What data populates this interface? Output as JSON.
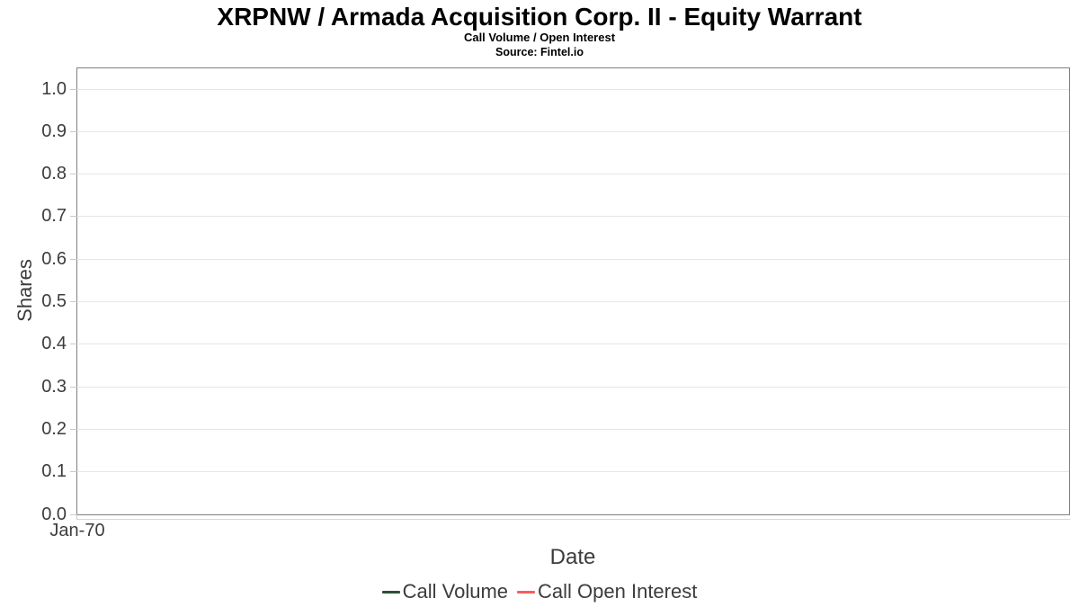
{
  "chart_data": {
    "type": "line",
    "title": "XRPNW / Armada Acquisition Corp. II - Equity Warrant",
    "subtitle": "Call Volume / Open Interest",
    "source": "Source: Fintel.io",
    "xlabel": "Date",
    "ylabel": "Shares",
    "x_tick_labels": [
      "Jan-70"
    ],
    "y_ticks": [
      0.0,
      0.1,
      0.2,
      0.3,
      0.4,
      0.5,
      0.6,
      0.7,
      0.8,
      0.9,
      1.0
    ],
    "y_tick_labels": [
      "0.0",
      "0.1",
      "0.2",
      "0.3",
      "0.4",
      "0.5",
      "0.6",
      "0.7",
      "0.8",
      "0.9",
      "1.0"
    ],
    "ylim": [
      0.0,
      1.05
    ],
    "grid": true,
    "legend_position": "bottom",
    "series": [
      {
        "name": "Call Volume",
        "color": "#2a5134",
        "values": []
      },
      {
        "name": "Call Open Interest",
        "color": "#fa5d5d",
        "values": []
      }
    ]
  },
  "colors": {
    "background": "#ffffff",
    "plot_border": "#808080",
    "gridline": "#e6e6e6",
    "tick_mark": "#c9c9c9",
    "axis_text": "#3c3c3c",
    "title_text": "#000000"
  }
}
